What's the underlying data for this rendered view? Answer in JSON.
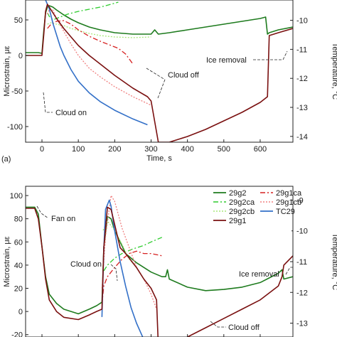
{
  "chart_data": [
    {
      "type": "line",
      "panel_label": "(a)",
      "xlabel": "Time, s",
      "ylabel": "Microstrain, με",
      "y2label": "Temperature, °C",
      "xlim": [
        -45,
        690
      ],
      "ylim": [
        -122,
        78
      ],
      "y2lim": [
        -14.2,
        -9.3
      ],
      "xticks": [
        0,
        100,
        200,
        300,
        400,
        500,
        600
      ],
      "yticks": [
        -100,
        -50,
        0,
        50
      ],
      "y2ticks": [
        -10,
        -11,
        -12,
        -13,
        -14
      ],
      "annotations": [
        "Cloud on",
        "Cloud off",
        "Ice removal"
      ],
      "series": [
        {
          "name": "29g2",
          "color": "#1e7b1e",
          "style": "solid",
          "axis": "left",
          "x": [
            -45,
            -10,
            0,
            5,
            10,
            15,
            20,
            30,
            40,
            60,
            80,
            100,
            130,
            160,
            200,
            250,
            290,
            300,
            310,
            320,
            350,
            400,
            450,
            500,
            550,
            600,
            615,
            620,
            625,
            650,
            690
          ],
          "y": [
            4,
            4,
            3,
            35,
            60,
            68,
            70,
            68,
            64,
            57,
            51,
            46,
            40,
            36,
            32,
            30,
            30,
            30,
            36,
            30,
            32,
            36,
            40,
            44,
            48,
            52,
            54,
            30,
            32,
            36,
            40
          ]
        },
        {
          "name": "29g2ca",
          "color": "#2ecc2e",
          "style": "dashdot",
          "axis": "left",
          "x": [
            15,
            20,
            30,
            40,
            50,
            70,
            100,
            130,
            160,
            190,
            210
          ],
          "y": [
            60,
            55,
            50,
            52,
            54,
            58,
            62,
            65,
            68,
            72,
            75
          ]
        },
        {
          "name": "29g2cb",
          "color": "#a8e87a",
          "style": "dotted",
          "axis": "left",
          "x": [
            15,
            25,
            40,
            60,
            80,
            100,
            130,
            160,
            200,
            250,
            300
          ],
          "y": [
            44,
            46,
            44,
            42,
            38,
            35,
            31,
            28,
            26,
            25,
            26
          ]
        },
        {
          "name": "29g1ca",
          "color": "#d62020",
          "style": "dashdot",
          "axis": "left",
          "x": [
            15,
            25,
            40,
            60,
            80,
            100,
            130,
            160,
            190,
            210,
            230,
            250
          ],
          "y": [
            38,
            44,
            48,
            49,
            44,
            36,
            27,
            20,
            14,
            10,
            2,
            -12
          ]
        },
        {
          "name": "29g1cb",
          "color": "#f08080",
          "style": "dotted",
          "axis": "left",
          "x": [
            15,
            20,
            30,
            40,
            60,
            80,
            100,
            130,
            160,
            200,
            250,
            300
          ],
          "y": [
            58,
            65,
            64,
            52,
            34,
            16,
            0,
            -18,
            -30,
            -44,
            -58,
            -70
          ]
        },
        {
          "name": "TC29",
          "color": "#3370c8",
          "style": "solid",
          "axis": "right",
          "x": [
            -45,
            0,
            10,
            20,
            30,
            40,
            50,
            60,
            80,
            100,
            130,
            160,
            200,
            250,
            290
          ],
          "y": [
            -9.1,
            -9.1,
            -9.3,
            -9.6,
            -10.1,
            -10.5,
            -10.9,
            -11.2,
            -11.7,
            -12.1,
            -12.5,
            -12.8,
            -13.1,
            -13.4,
            -13.6
          ]
        },
        {
          "name": "29g1",
          "color": "#7a1010",
          "style": "solid",
          "axis": "left",
          "x": [
            -45,
            -10,
            0,
            5,
            10,
            15,
            20,
            30,
            40,
            60,
            80,
            100,
            130,
            160,
            200,
            250,
            290,
            300,
            320,
            350,
            400,
            450,
            500,
            550,
            600,
            620,
            625,
            650,
            690
          ],
          "y": [
            0,
            0,
            0,
            30,
            62,
            72,
            68,
            60,
            52,
            38,
            26,
            14,
            0,
            -12,
            -28,
            -46,
            -58,
            -64,
            -122,
            -122,
            -114,
            -104,
            -92,
            -80,
            -66,
            -58,
            28,
            32,
            38
          ]
        }
      ]
    },
    {
      "type": "line",
      "xlabel": "",
      "ylabel": "Microstrain, με",
      "y2label": "Temperature, °C",
      "xlim": [
        -45,
        690
      ],
      "ylim": [
        -22,
        108
      ],
      "y2lim": [
        -13.45,
        -8.55
      ],
      "yticks": [
        -20,
        0,
        20,
        40,
        60,
        80,
        100
      ],
      "y2ticks": [
        -9,
        -10,
        -11,
        -12,
        -13
      ],
      "annotations": [
        "Fan on",
        "Cloud on",
        "Cloud off",
        "Ice removal"
      ],
      "legend": {
        "placement": "top-right",
        "entries": [
          "29g2",
          "29g1ca",
          "29g2ca",
          "29g1cb",
          "29g2cb",
          "TC29",
          "29g1"
        ]
      },
      "series": [
        {
          "name": "29g2",
          "color": "#1e7b1e",
          "style": "solid",
          "axis": "left",
          "x": [
            -45,
            -20,
            -10,
            0,
            10,
            20,
            40,
            60,
            100,
            130,
            150,
            165,
            170,
            180,
            190,
            200,
            215,
            230,
            260,
            300,
            330,
            340,
            345,
            350,
            400,
            450,
            500,
            550,
            600,
            650,
            660,
            665,
            690
          ],
          "y": [
            90,
            90,
            84,
            56,
            30,
            15,
            7,
            2,
            -2,
            2,
            5,
            8,
            55,
            82,
            80,
            70,
            60,
            50,
            42,
            34,
            30,
            30,
            36,
            28,
            21,
            18,
            19,
            21,
            25,
            33,
            36,
            28,
            30
          ]
        },
        {
          "name": "29g2ca",
          "color": "#2ecc2e",
          "style": "dashdot",
          "axis": "left",
          "x": [
            170,
            180,
            200,
            220,
            250,
            280,
            300,
            330
          ],
          "y": [
            35,
            40,
            46,
            50,
            54,
            57,
            60,
            64
          ]
        },
        {
          "name": "29g2cb",
          "color": "#a8e87a",
          "style": "dotted",
          "axis": "left",
          "x": [
            168,
            180,
            200,
            220,
            240,
            260,
            280,
            300
          ],
          "y": [
            70,
            78,
            70,
            58,
            45,
            38,
            28,
            20
          ]
        },
        {
          "name": "29g1ca",
          "color": "#d62020",
          "style": "dashdot",
          "axis": "left",
          "x": [
            165,
            170,
            180,
            200,
            220,
            240,
            260,
            280,
            300,
            330
          ],
          "y": [
            6,
            22,
            30,
            38,
            45,
            50,
            52,
            50,
            50,
            48
          ]
        },
        {
          "name": "29g1cb",
          "color": "#f08080",
          "style": "dotted",
          "axis": "left",
          "x": [
            165,
            175,
            190,
            200,
            220,
            240,
            260,
            280,
            300,
            315
          ],
          "y": [
            20,
            65,
            100,
            95,
            72,
            55,
            38,
            28,
            15,
            2
          ]
        },
        {
          "name": "TC29",
          "color": "#3370c8",
          "style": "solid",
          "axis": "right",
          "x": [
            165,
            170,
            175,
            185,
            190,
            200,
            215,
            230,
            245,
            260,
            275,
            290
          ],
          "y": [
            -12.8,
            -10.6,
            -9.3,
            -9.0,
            -9.2,
            -10.0,
            -11.0,
            -11.8,
            -12.5,
            -13.0,
            -13.4,
            -13.8
          ]
        },
        {
          "name": "29g1",
          "color": "#7a1010",
          "style": "solid",
          "axis": "left",
          "x": [
            -45,
            -20,
            -10,
            0,
            10,
            20,
            40,
            60,
            100,
            130,
            150,
            165,
            170,
            180,
            190,
            200,
            215,
            230,
            260,
            280,
            300,
            315,
            320,
            350,
            400,
            450,
            500,
            550,
            600,
            650,
            660,
            665,
            690
          ],
          "y": [
            89,
            89,
            80,
            56,
            28,
            10,
            0,
            -5,
            -7,
            -3,
            0,
            2,
            55,
            90,
            88,
            75,
            55,
            50,
            38,
            28,
            20,
            10,
            -30,
            -28,
            -22,
            -14,
            -6,
            2,
            10,
            22,
            30,
            40,
            48
          ]
        }
      ]
    }
  ]
}
